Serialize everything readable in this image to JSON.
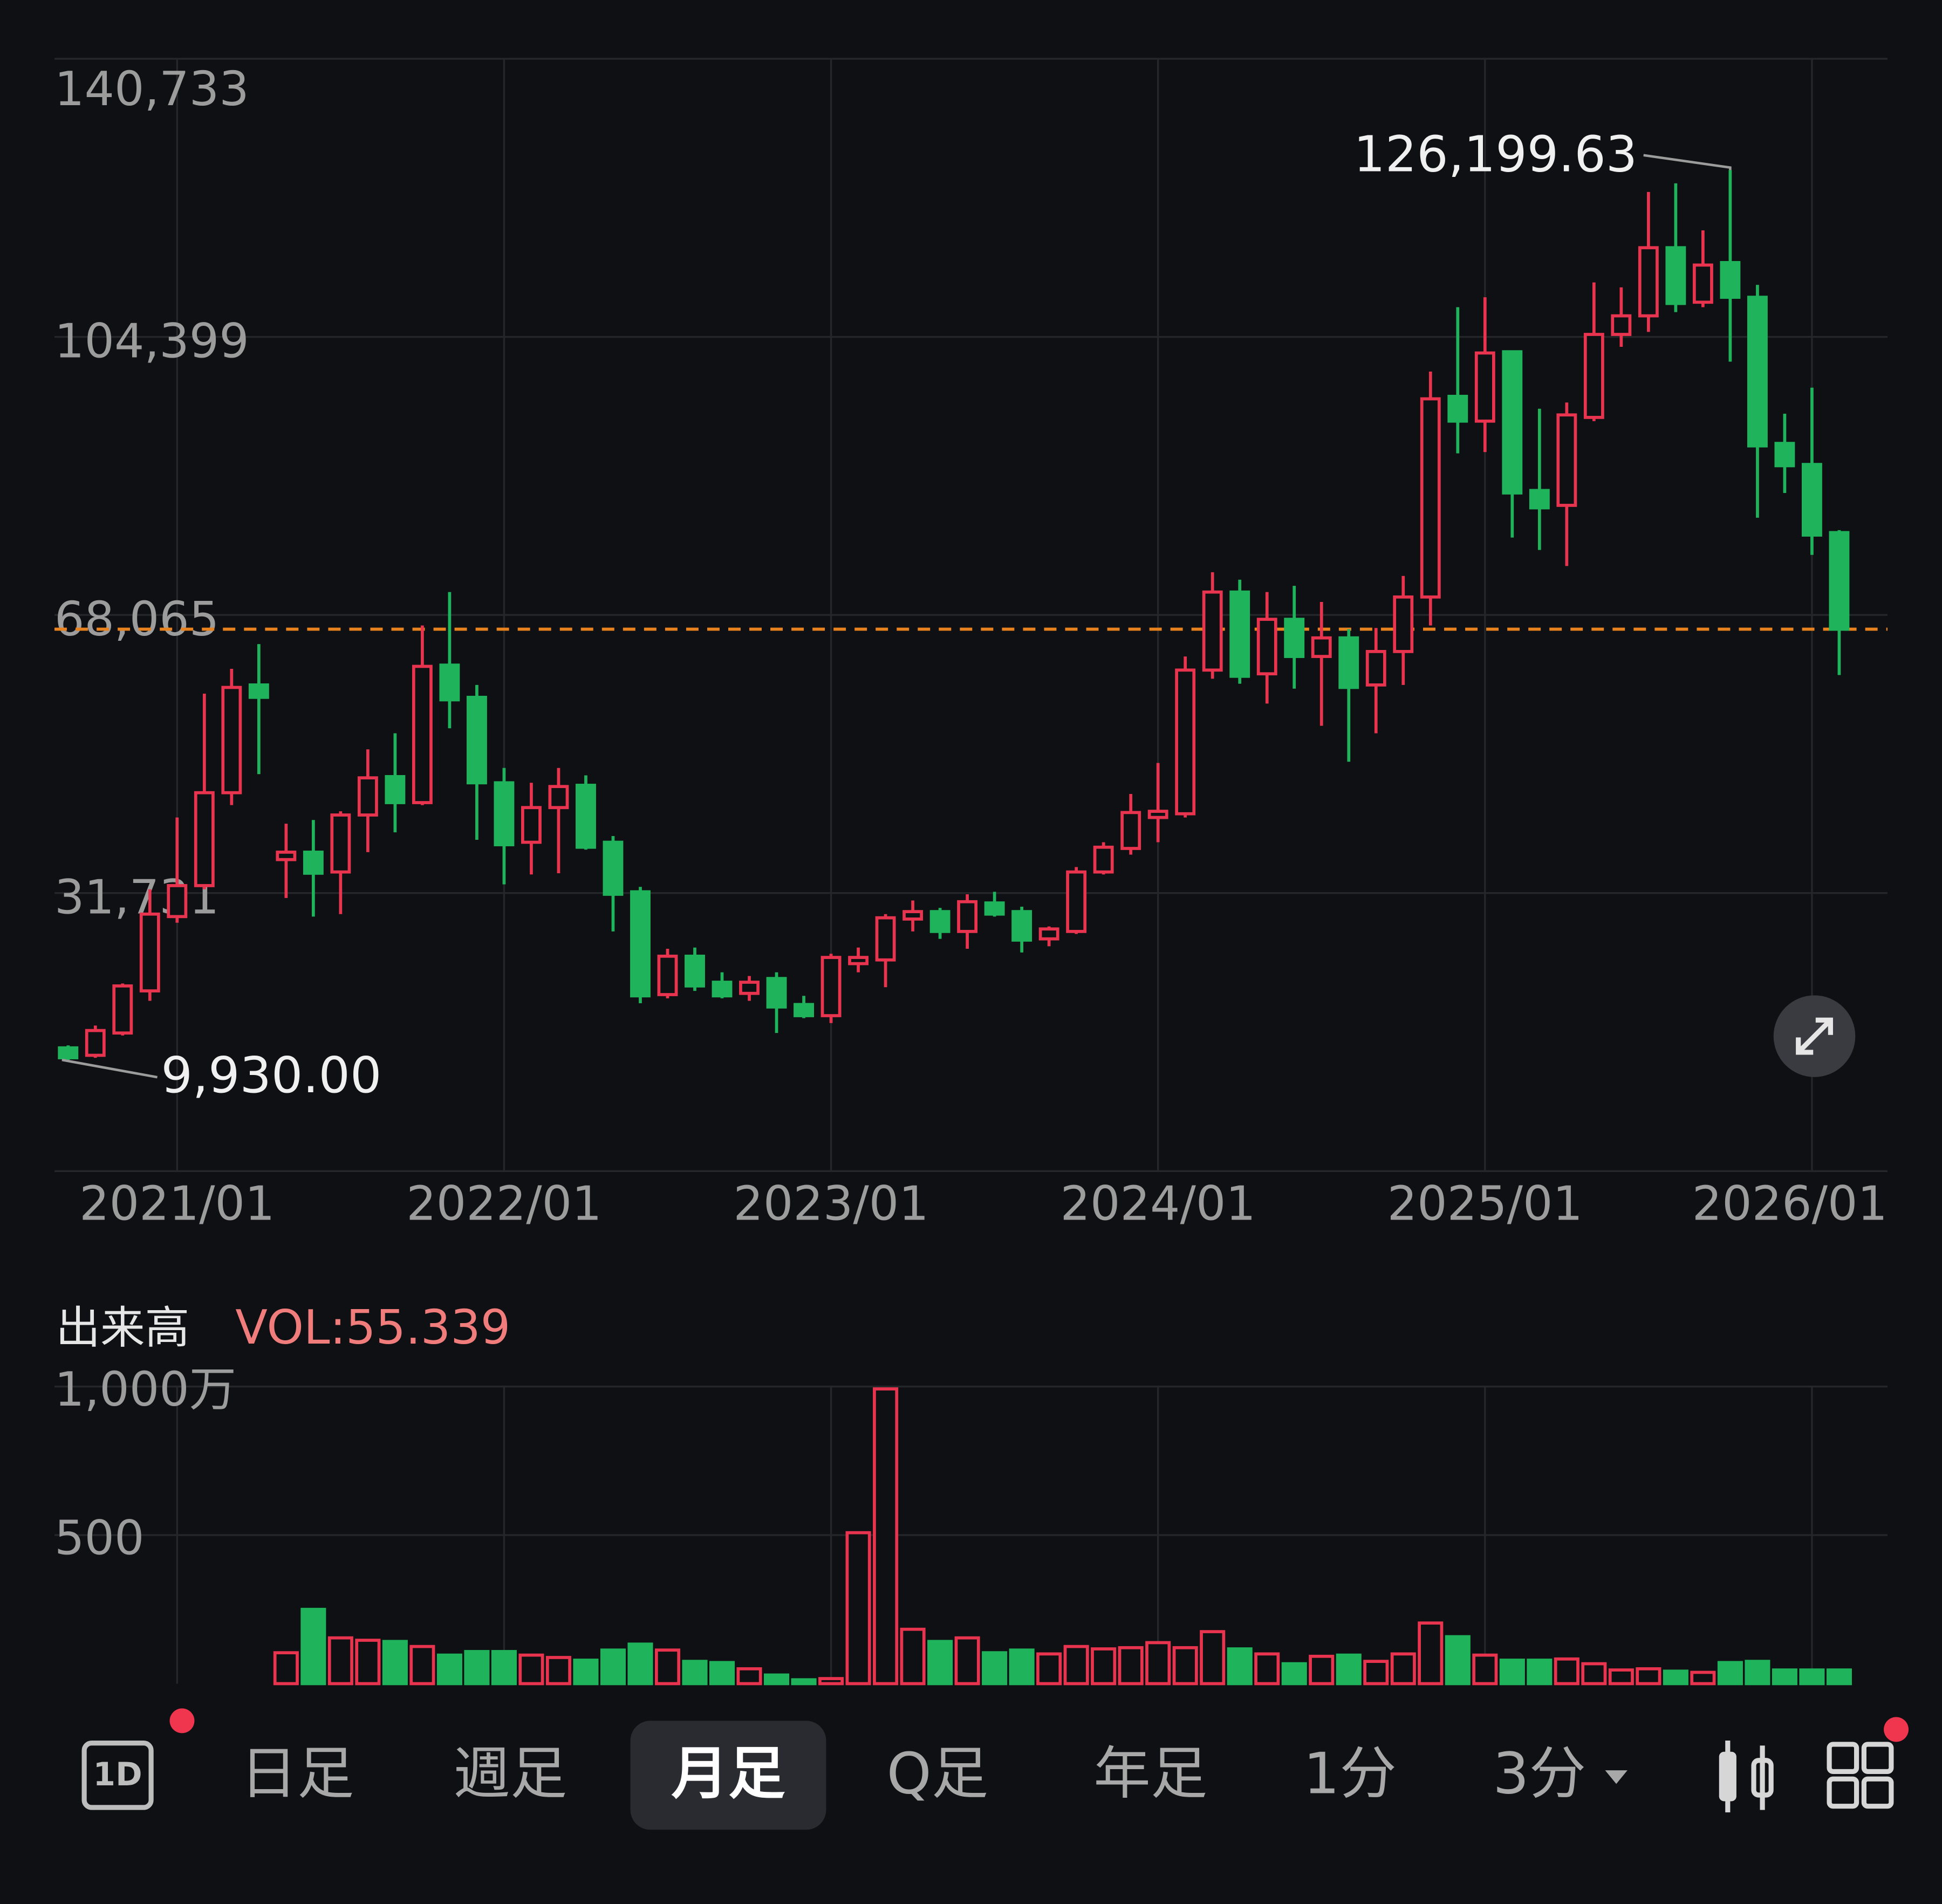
{
  "chart_data": {
    "type": "candlestick",
    "x": [
      "2020/09",
      "2020/10",
      "2020/11",
      "2020/12",
      "2021/01",
      "2021/02",
      "2021/03",
      "2021/04",
      "2021/05",
      "2021/06",
      "2021/07",
      "2021/08",
      "2021/09",
      "2021/10",
      "2021/11",
      "2021/12",
      "2022/01",
      "2022/02",
      "2022/03",
      "2022/04",
      "2022/05",
      "2022/06",
      "2022/07",
      "2022/08",
      "2022/09",
      "2022/10",
      "2022/11",
      "2022/12",
      "2023/01",
      "2023/02",
      "2023/03",
      "2023/04",
      "2023/05",
      "2023/06",
      "2023/07",
      "2023/08",
      "2023/09",
      "2023/10",
      "2023/11",
      "2023/12",
      "2024/01",
      "2024/02",
      "2024/03",
      "2024/04",
      "2024/05",
      "2024/06",
      "2024/07",
      "2024/08",
      "2024/09",
      "2024/10",
      "2024/11",
      "2024/12",
      "2025/01",
      "2025/02",
      "2025/03",
      "2025/04",
      "2025/05",
      "2025/06",
      "2025/07",
      "2025/08",
      "2025/09",
      "2025/10",
      "2025/11",
      "2025/12",
      "2026/01",
      "2026/02"
    ],
    "open": [
      11501,
      10530,
      13443,
      18946,
      28656,
      32702,
      44840,
      58920,
      36101,
      37072,
      34483,
      41927,
      46944,
      43546,
      61510,
      57302,
      46135,
      38367,
      42898,
      45811,
      38367,
      31893,
      18460,
      23478,
      20079,
      18622,
      20564,
      17166,
      15709,
      22506,
      22992,
      28333,
      29304,
      26714,
      30437,
      29304,
      25743,
      26714,
      34483,
      37558,
      41604,
      42089,
      60863,
      71058,
      60377,
      67498,
      62643,
      65070,
      58920,
      63290,
      70411,
      96629,
      93392,
      102455,
      84329,
      82387,
      93878,
      104721,
      107149,
      116050,
      108929,
      114108,
      109576,
      90479,
      87728,
      78827
    ],
    "high": [
      11825,
      14414,
      19917,
      32217,
      41604,
      57788,
      61024,
      64261,
      40794,
      41280,
      42413,
      50505,
      52609,
      66689,
      71058,
      58920,
      48077,
      46135,
      48077,
      47106,
      39176,
      32541,
      24449,
      24610,
      21374,
      20888,
      21374,
      18299,
      23801,
      24610,
      28980,
      30760,
      29789,
      31570,
      31893,
      29951,
      27362,
      35130,
      38367,
      44679,
      48725,
      62643,
      73648,
      72677,
      71058,
      71868,
      69764,
      66203,
      66365,
      73162,
      99866,
      108282,
      109576,
      102617,
      95011,
      95820,
      111518,
      110871,
      123333,
      124466,
      118316,
      126199.63,
      111195,
      94363,
      97762,
      79150
    ],
    "low": [
      9930,
      10207,
      13120,
      17651,
      27847,
      32217,
      43222,
      47268,
      31084,
      28656,
      28980,
      37072,
      39662,
      43222,
      53256,
      38690,
      32864,
      34159,
      34321,
      37396,
      26714,
      17328,
      17975,
      18946,
      17975,
      17651,
      13443,
      15386,
      14738,
      21374,
      19432,
      26714,
      25743,
      24449,
      28656,
      23963,
      24772,
      26391,
      34159,
      36748,
      38367,
      41604,
      59730,
      59082,
      56493,
      58435,
      53580,
      48886,
      52609,
      58920,
      66689,
      89185,
      89346,
      78179,
      76561,
      74457,
      93392,
      103103,
      105045,
      107634,
      108282,
      101161,
      80769,
      84006,
      75914,
      60215
    ],
    "close": [
      10207,
      13767,
      19593,
      28980,
      32702,
      44840,
      58597,
      57302,
      37072,
      34321,
      41927,
      46782,
      43546,
      61348,
      56978,
      46135,
      38043,
      42898,
      45650,
      37719,
      31570,
      18299,
      23478,
      19593,
      18299,
      20079,
      16842,
      15709,
      23316,
      23316,
      28495,
      29304,
      26714,
      30598,
      28980,
      25581,
      27038,
      34483,
      37719,
      42251,
      42413,
      60863,
      71058,
      60053,
      67498,
      62643,
      65070,
      58597,
      63290,
      70411,
      96306,
      93392,
      102294,
      84006,
      82064,
      94202,
      104721,
      107149,
      116050,
      108767,
      113784,
      109576,
      90156,
      87566,
      78503,
      66203
    ],
    "ylim": [
      -4603,
      140733
    ],
    "yticks": [
      {
        "value": 140733,
        "label": "140,733"
      },
      {
        "value": 104399,
        "label": "104,399"
      },
      {
        "value": 68065,
        "label": "68,065"
      },
      {
        "value": 31731,
        "label": "31,731"
      }
    ],
    "grid": true,
    "up_color": "#e8344e",
    "down_color": "#1fb35b",
    "reference_line": {
      "value": 66203,
      "color": "#e8821e"
    },
    "high_label": "126,199.63",
    "low_label": "9,930.00",
    "volume": {
      "title": "出来高",
      "indicator": "VOL:55.339",
      "ylim": [
        0,
        1000
      ],
      "yticks": [
        {
          "value": 1000,
          "label": "1,000万"
        },
        500
      ],
      "values": [
        null,
        null,
        null,
        null,
        null,
        null,
        null,
        null,
        104,
        250,
        154,
        146,
        142,
        125,
        96,
        108,
        108,
        96,
        88,
        79,
        113,
        133,
        113,
        75,
        71,
        50,
        29,
        13,
        17,
        508,
        992,
        183,
        142,
        154,
        104,
        113,
        100,
        125,
        117,
        121,
        138,
        121,
        175,
        117,
        100,
        67,
        92,
        96,
        75,
        100,
        204,
        158,
        96,
        79,
        79,
        83,
        67,
        46,
        50,
        42,
        38,
        71,
        75,
        46,
        46,
        46
      ]
    }
  },
  "toolbar": {
    "icon_label": "1D",
    "tabs": [
      "日足",
      "週足",
      "月足",
      "Q足",
      "年足",
      "1分",
      "3分"
    ],
    "selected": 2
  }
}
